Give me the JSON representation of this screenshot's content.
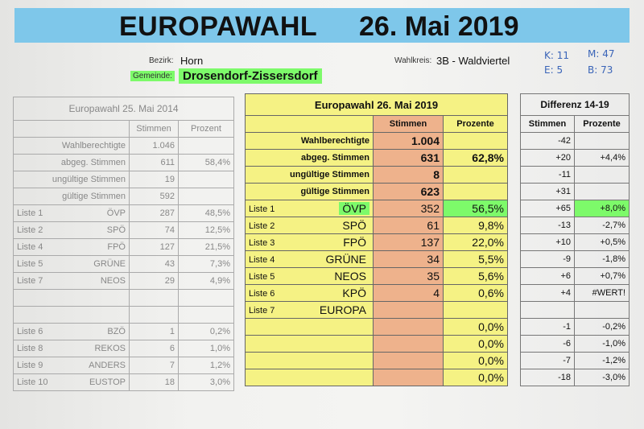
{
  "title": "EUROPAWAHL",
  "date": "26. Mai 2019",
  "header": {
    "bezirk_label": "Bezirk:",
    "bezirk_value": "Horn",
    "gemeinde_label": "Gemeinde:",
    "gemeinde_value": "Drosendorf-Zissersdorf",
    "wahlkreis_label": "Wahlkreis:",
    "wahlkreis_value": "3B - Waldviertel"
  },
  "handwritten": [
    "K: 11",
    "M: 47",
    "E: 5",
    "B: 73"
  ],
  "left": {
    "caption": "Europawahl 25. Mai 2014",
    "col_stimmen": "Stimmen",
    "col_prozent": "Prozent",
    "summary": [
      {
        "label": "Wahlberechtigte",
        "stimmen": "1.046",
        "prozent": ""
      },
      {
        "label": "abgeg. Stimmen",
        "stimmen": "611",
        "prozent": "58,4%"
      },
      {
        "label": "ungültige Stimmen",
        "stimmen": "19",
        "prozent": ""
      },
      {
        "label": "gültige Stimmen",
        "stimmen": "592",
        "prozent": ""
      }
    ],
    "parties": [
      {
        "liste": "Liste 1",
        "party": "ÖVP",
        "stimmen": "287",
        "prozent": "48,5%"
      },
      {
        "liste": "Liste 2",
        "party": "SPÖ",
        "stimmen": "74",
        "prozent": "12,5%"
      },
      {
        "liste": "Liste 4",
        "party": "FPÖ",
        "stimmen": "127",
        "prozent": "21,5%"
      },
      {
        "liste": "Liste 5",
        "party": "GRÜNE",
        "stimmen": "43",
        "prozent": "7,3%"
      },
      {
        "liste": "Liste 7",
        "party": "NEOS",
        "stimmen": "29",
        "prozent": "4,9%"
      },
      {
        "liste": "",
        "party": "",
        "stimmen": "",
        "prozent": ""
      },
      {
        "liste": "",
        "party": "",
        "stimmen": "",
        "prozent": ""
      },
      {
        "liste": "Liste 6",
        "party": "BZÖ",
        "stimmen": "1",
        "prozent": "0,2%"
      },
      {
        "liste": "Liste 8",
        "party": "REKOS",
        "stimmen": "6",
        "prozent": "1,0%"
      },
      {
        "liste": "Liste 9",
        "party": "ANDERS",
        "stimmen": "7",
        "prozent": "1,2%"
      },
      {
        "liste": "Liste 10",
        "party": "EUSTOP",
        "stimmen": "18",
        "prozent": "3,0%"
      }
    ]
  },
  "middle": {
    "caption": "Europawahl 26. Mai 2019",
    "col_stimmen": "Stimmen",
    "col_prozent": "Prozente",
    "summary": [
      {
        "label": "Wahlberechtigte",
        "stimmen": "1.004",
        "prozent": ""
      },
      {
        "label": "abgeg. Stimmen",
        "stimmen": "631",
        "prozent": "62,8%"
      },
      {
        "label": "ungültige Stimmen",
        "stimmen": "8",
        "prozent": ""
      },
      {
        "label": "gültige Stimmen",
        "stimmen": "623",
        "prozent": ""
      }
    ],
    "parties": [
      {
        "liste": "Liste 1",
        "party": "ÖVP",
        "stimmen": "352",
        "prozent": "56,5%"
      },
      {
        "liste": "Liste 2",
        "party": "SPÖ",
        "stimmen": "61",
        "prozent": "9,8%"
      },
      {
        "liste": "Liste 3",
        "party": "FPÖ",
        "stimmen": "137",
        "prozent": "22,0%"
      },
      {
        "liste": "Liste 4",
        "party": "GRÜNE",
        "stimmen": "34",
        "prozent": "5,5%"
      },
      {
        "liste": "Liste 5",
        "party": "NEOS",
        "stimmen": "35",
        "prozent": "5,6%"
      },
      {
        "liste": "Liste 6",
        "party": "KPÖ",
        "stimmen": "4",
        "prozent": "0,6%"
      },
      {
        "liste": "Liste 7",
        "party": "EUROPA",
        "stimmen": "",
        "prozent": ""
      },
      {
        "liste": "",
        "party": "",
        "stimmen": "",
        "prozent": "0,0%"
      },
      {
        "liste": "",
        "party": "",
        "stimmen": "",
        "prozent": "0,0%"
      },
      {
        "liste": "",
        "party": "",
        "stimmen": "",
        "prozent": "0,0%"
      },
      {
        "liste": "",
        "party": "",
        "stimmen": "",
        "prozent": "0,0%"
      }
    ]
  },
  "right": {
    "caption": "Differenz 14-19",
    "col_stimmen": "Stimmen",
    "col_prozent": "Prozente",
    "summary": [
      {
        "stimmen": "-42",
        "prozent": ""
      },
      {
        "stimmen": "+20",
        "prozent": "+4,4%"
      },
      {
        "stimmen": "-11",
        "prozent": ""
      },
      {
        "stimmen": "+31",
        "prozent": ""
      }
    ],
    "parties": [
      {
        "stimmen": "+65",
        "prozent": "+8,0%"
      },
      {
        "stimmen": "-13",
        "prozent": "-2,7%"
      },
      {
        "stimmen": "+10",
        "prozent": "+0,5%"
      },
      {
        "stimmen": "-9",
        "prozent": "-1,8%"
      },
      {
        "stimmen": "+6",
        "prozent": "+0,7%"
      },
      {
        "stimmen": "+4",
        "prozent": "#WERT!"
      },
      {
        "stimmen": "",
        "prozent": ""
      },
      {
        "stimmen": "-1",
        "prozent": "-0,2%"
      },
      {
        "stimmen": "-6",
        "prozent": "-1,0%"
      },
      {
        "stimmen": "-7",
        "prozent": "-1,2%"
      },
      {
        "stimmen": "-18",
        "prozent": "-3,0%"
      }
    ]
  },
  "colors": {
    "title_bar": "#7ec7ea",
    "highlight": "#7dfa6a",
    "yellow": "#f5f284",
    "salmon": "#eeb28c"
  }
}
